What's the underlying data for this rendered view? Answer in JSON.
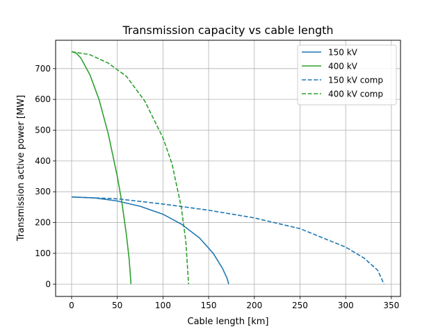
{
  "chart_data": {
    "type": "line",
    "title": "Transmission capacity vs cable length",
    "xlabel": "Cable length [km]",
    "ylabel": "Transmission active power [MW]",
    "xlim": [
      -17.5,
      360
    ],
    "ylim": [
      -40,
      792
    ],
    "xticks": [
      0,
      50,
      100,
      150,
      200,
      250,
      300,
      350
    ],
    "yticks": [
      0,
      100,
      200,
      300,
      400,
      500,
      600,
      700
    ],
    "grid": true,
    "legend_position": "top-right",
    "series": [
      {
        "name": "150 kV",
        "color": "#1f77b4",
        "dash": "solid",
        "x": [
          0,
          25,
          50,
          75,
          100,
          120,
          140,
          155,
          165,
          170,
          172
        ],
        "y": [
          283,
          280,
          270,
          253,
          227,
          195,
          150,
          100,
          52,
          20,
          0
        ]
      },
      {
        "name": "400 kV",
        "color": "#2ca02c",
        "dash": "solid",
        "x": [
          0,
          5,
          10,
          20,
          30,
          40,
          50,
          55,
          60,
          63,
          65
        ],
        "y": [
          755,
          750,
          735,
          680,
          600,
          490,
          350,
          265,
          160,
          80,
          0
        ]
      },
      {
        "name": "150 kV comp",
        "color": "#1f77b4",
        "dash": "dashed",
        "x": [
          0,
          50,
          100,
          150,
          200,
          250,
          300,
          320,
          335,
          342
        ],
        "y": [
          283,
          277,
          260,
          240,
          215,
          180,
          120,
          85,
          45,
          0
        ]
      },
      {
        "name": "400 kV comp",
        "color": "#2ca02c",
        "dash": "dashed",
        "x": [
          0,
          20,
          40,
          60,
          80,
          100,
          110,
          120,
          125,
          128
        ],
        "y": [
          755,
          745,
          718,
          675,
          595,
          475,
          390,
          250,
          140,
          0
        ]
      }
    ]
  }
}
